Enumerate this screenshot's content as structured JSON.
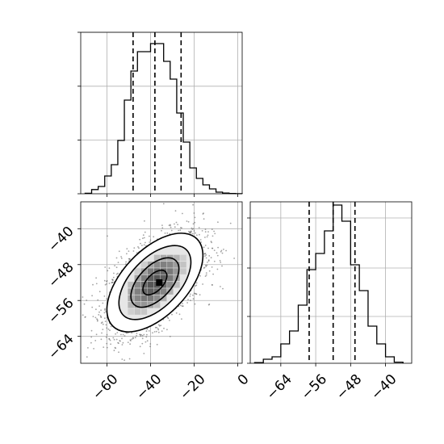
{
  "chart_data": [
    {
      "type": "bar",
      "panel": "top-left marginal histogram",
      "bin_edges": [
        -70,
        -67,
        -64,
        -61,
        -58,
        -55,
        -52,
        -49,
        -46,
        -43,
        -40,
        -37,
        -34,
        -31,
        -28,
        -25,
        -22,
        -19,
        -16,
        -13,
        -10,
        -7,
        -4,
        -1,
        2
      ],
      "values": [
        0.3,
        2.6,
        4.5,
        11,
        18,
        33,
        58,
        76,
        88,
        88,
        93,
        93,
        82,
        71,
        50,
        32,
        16,
        9.5,
        5.5,
        3,
        1,
        0.4,
        0.2,
        0.05
      ],
      "quantile_lines": [
        -48,
        -38,
        -26
      ],
      "xlim": [
        -72,
        2
      ],
      "ylim": [
        0,
        100
      ],
      "grid": true
    },
    {
      "type": "heatmap",
      "panel": "bottom-left 2D density with contours and scatter",
      "center": [
        -38,
        -52
      ],
      "sd": [
        11,
        5.5
      ],
      "correlation": 0.55,
      "peak_cell": [
        -36,
        -52
      ],
      "xlim": [
        -72,
        2
      ],
      "ylim": [
        -70,
        -34
      ],
      "x_ticks": [
        "−60",
        "−40",
        "−20",
        "0"
      ],
      "x_tick_values": [
        -60,
        -40,
        -20,
        0
      ],
      "y_ticks": [
        "−40",
        "−48",
        "−56",
        "−64"
      ],
      "y_tick_values": [
        -40,
        -48,
        -56,
        -64
      ],
      "grid": true
    },
    {
      "type": "bar",
      "panel": "bottom-right marginal histogram",
      "bin_edges": [
        -70,
        -68,
        -66,
        -64,
        -62,
        -60,
        -58,
        -56,
        -54,
        -52,
        -50,
        -48,
        -46,
        -44,
        -42,
        -40,
        -38,
        -36
      ],
      "values": [
        0.4,
        2.5,
        4,
        12,
        20,
        36,
        58,
        68,
        82,
        98,
        88,
        61,
        45,
        23,
        12,
        4,
        0.7
      ],
      "quantile_lines": [
        -57.5,
        -52,
        -47
      ],
      "xlim": [
        -71,
        -34
      ],
      "ylim": [
        0,
        100
      ],
      "x_ticks": [
        "−64",
        "−56",
        "−48",
        "−40"
      ],
      "x_tick_values": [
        -64,
        -56,
        -48,
        -40
      ],
      "grid": true
    }
  ]
}
